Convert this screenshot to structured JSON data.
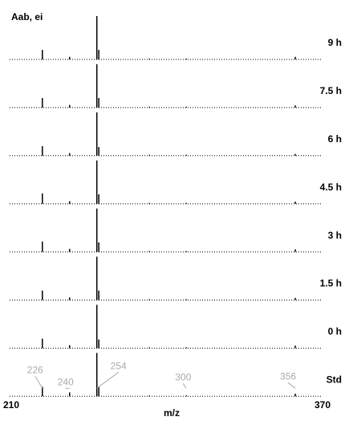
{
  "chart_data": {
    "type": "stick",
    "title": "Aab, ei",
    "xlabel": "m/z",
    "x": [
      226,
      240,
      254,
      255,
      281,
      300,
      356
    ],
    "xlim": [
      210,
      370
    ],
    "xticks": [
      210,
      370
    ],
    "ylim": [
      0,
      100
    ],
    "color": "#000000",
    "annotation_color": "#aaaaaa",
    "annotations": [
      226,
      240,
      254,
      300,
      356
    ],
    "series": [
      {
        "name": "9 h",
        "values": [
          22,
          6,
          100,
          22,
          2,
          2,
          6
        ]
      },
      {
        "name": "7.5 h",
        "values": [
          22,
          6,
          100,
          22,
          2,
          2,
          5
        ]
      },
      {
        "name": "6 h",
        "values": [
          22,
          6,
          100,
          20,
          2,
          2,
          4
        ]
      },
      {
        "name": "4.5 h",
        "values": [
          24,
          6,
          100,
          22,
          2,
          2,
          5
        ]
      },
      {
        "name": "3 h",
        "values": [
          24,
          7,
          100,
          22,
          2,
          2,
          6
        ]
      },
      {
        "name": "1.5 h",
        "values": [
          22,
          6,
          100,
          22,
          2,
          2,
          5
        ]
      },
      {
        "name": "0 h",
        "values": [
          22,
          7,
          100,
          20,
          2,
          2,
          6
        ]
      },
      {
        "name": "Std",
        "values": [
          22,
          9,
          100,
          22,
          2,
          2,
          6
        ]
      }
    ]
  }
}
